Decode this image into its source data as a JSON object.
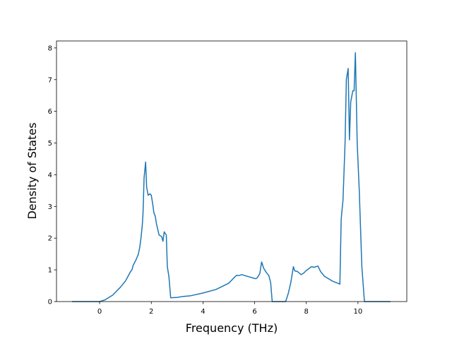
{
  "chart_data": {
    "type": "line",
    "x_label": "Frequency (THz)",
    "y_label": "Density of States",
    "color": "#1f77b4",
    "x": [
      -1.07,
      0,
      0.2,
      0.5,
      0.8,
      1.0,
      1.1,
      1.2,
      1.25,
      1.3,
      1.4,
      1.5,
      1.55,
      1.6,
      1.65,
      1.68,
      1.72,
      1.78,
      1.82,
      1.88,
      1.95,
      2.0,
      2.05,
      2.1,
      2.15,
      2.2,
      2.3,
      2.4,
      2.45,
      2.5,
      2.58,
      2.62,
      2.68,
      2.75,
      3.0,
      3.2,
      3.5,
      4.0,
      4.5,
      5.0,
      5.2,
      5.3,
      5.4,
      5.5,
      5.7,
      6.0,
      6.05,
      6.1,
      6.2,
      6.27,
      6.35,
      6.45,
      6.55,
      6.62,
      6.68,
      7.2,
      7.3,
      7.4,
      7.5,
      7.55,
      7.65,
      7.8,
      7.9,
      8.0,
      8.2,
      8.3,
      8.45,
      8.55,
      8.7,
      9.0,
      9.3,
      9.35,
      9.42,
      9.5,
      9.55,
      9.62,
      9.67,
      9.72,
      9.8,
      9.85,
      9.9,
      9.97,
      10.05,
      10.15,
      10.25,
      11.26
    ],
    "values": [
      0,
      0,
      0.05,
      0.2,
      0.45,
      0.65,
      0.8,
      0.95,
      1.0,
      1.15,
      1.3,
      1.5,
      1.7,
      2.0,
      2.4,
      2.8,
      3.9,
      4.4,
      3.6,
      3.35,
      3.4,
      3.35,
      3.1,
      2.8,
      2.7,
      2.45,
      2.1,
      2.05,
      1.9,
      2.2,
      2.1,
      1.1,
      0.8,
      0.12,
      0.13,
      0.16,
      0.18,
      0.27,
      0.38,
      0.58,
      0.75,
      0.83,
      0.82,
      0.85,
      0.8,
      0.73,
      0.72,
      0.75,
      0.88,
      1.25,
      1.05,
      0.92,
      0.82,
      0.6,
      0,
      0,
      0.25,
      0.6,
      1.1,
      0.97,
      0.95,
      0.85,
      0.9,
      0.98,
      1.1,
      1.08,
      1.12,
      0.95,
      0.8,
      0.65,
      0.55,
      2.6,
      3.2,
      5.0,
      7.0,
      7.35,
      5.1,
      6.3,
      6.65,
      6.65,
      7.85,
      5.0,
      3.5,
      1.1,
      0,
      0
    ],
    "xlim": [
      -1.67,
      11.89
    ],
    "ylim": [
      0,
      8.22
    ],
    "xticks": [
      0,
      2,
      4,
      6,
      8,
      10
    ],
    "yticks": [
      0,
      1,
      2,
      3,
      4,
      5,
      6,
      7,
      8
    ]
  }
}
